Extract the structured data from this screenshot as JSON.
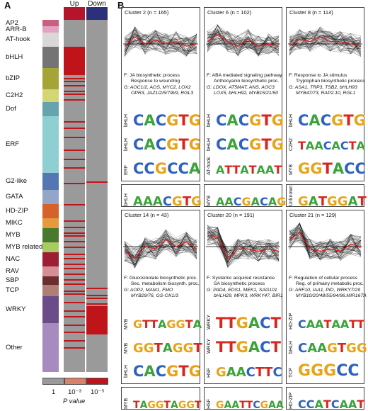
{
  "panel_a": {
    "letter": "A",
    "col_up": "Up",
    "col_down": "Down",
    "families": [
      "AP2",
      "ARR-B",
      "AT-hook",
      "bHLH",
      "bZIP",
      "C2H2",
      "Dof",
      "ERF",
      "G2-like",
      "GATA",
      "HD-ZIP",
      "MIKC",
      "MYB",
      "MYB_related",
      "NAC",
      "RAV",
      "SBP",
      "TCP",
      "WRKY",
      "Other"
    ],
    "legend": {
      "v1": "1",
      "v2": "10⁻³",
      "v3": "10⁻⁵",
      "label": "P value"
    },
    "colors": {
      "up_header": "#b5152b",
      "down_header": "#2c2f7a",
      "sig": "#c0141b",
      "bg": "#9a9a9a",
      "mid": "#d9826a"
    }
  },
  "panel_b": {
    "letter": "B",
    "clusters": [
      {
        "title": "Cluster 2 (n = 165)",
        "f1": "F: JA biosynthetic process",
        "f2": "Response to wounding",
        "g1": "G: AOC1/2, AOS, MYC2, LOX2",
        "g2": "OPR3, JAZ1/2/5/7/8/9, RGL3",
        "motifs": [
          {
            "tf": "bHLH",
            "seq": "CACGTG"
          },
          {
            "tf": "bHLH",
            "seq": "CACGTG"
          },
          {
            "tf": "ERF",
            "seq": "CCGCCA"
          }
        ],
        "extra": {
          "tf": "bHLH",
          "seq": "AAACGTG"
        }
      },
      {
        "title": "Cluster 6 (n = 102)",
        "f1": "F: ABA mediated signaling pathway",
        "f2": "Anthocyanin biosynthetic proc.",
        "g1": "G: LDOX, AT5MAT, ANS, AOC3",
        "g2": "LOX5, bHLH92, MYB15/21/50",
        "motifs": [
          {
            "tf": "bHLH",
            "seq": "CACGTG"
          },
          {
            "tf": "bHLH",
            "seq": "CACGTG"
          },
          {
            "tf": "AT-hook",
            "seq": "ATTATAAT"
          }
        ],
        "extra": {
          "tf": "MYB",
          "seq": "AACGACAG"
        }
      },
      {
        "title": "Cluster 8 (n = 114)",
        "f1": "F: Response to JA stimulus",
        "f2": "Tryptophan biosynthetic process",
        "g1": "G: ASA1, TRP3, TSB2, bHLH93",
        "g2": "MYB47/73, RAP2.10, RGL1",
        "motifs": [
          {
            "tf": "bHLH",
            "seq": "CACGTG"
          },
          {
            "tf": "C2H2",
            "seq": "TAACACTA"
          },
          {
            "tf": "MYB",
            "seq": "GGTACC"
          }
        ],
        "extra": {
          "tf": "Unknown",
          "seq": "GATGGAT"
        }
      },
      {
        "title": "Cluster 14 (n = 43)",
        "f1": "F: Glucosinolate biosynthetic proc.",
        "f2": "Sec. metabolism biosynth. proc.",
        "g1": "G: AOP2, MAM1, FMO",
        "g2": "MYB29/76, GS-OX1/3",
        "motifs": [
          {
            "tf": "MYB",
            "seq": "GTTAGGTA"
          },
          {
            "tf": "MYB",
            "seq": "GGTAGGT"
          },
          {
            "tf": "bHLH",
            "seq": "CACGTG"
          }
        ],
        "extra": {
          "tf": "MYB",
          "seq": "TAGGTAGGT"
        }
      },
      {
        "title": "Cluster 20 (n = 191)",
        "f1": "F: Systemic acquired resistance",
        "f2": "SA biosynthetic process",
        "g1": "G: PAD4, EDS1, MEK1, SAG101",
        "g2": "bHLH29, MPK3, WRKY47, BIR1",
        "motifs": [
          {
            "tf": "WRKY",
            "seq": "TTGACT"
          },
          {
            "tf": "WRKY",
            "seq": "TTGACT"
          },
          {
            "tf": "HSF",
            "seq": "GAACTTC"
          }
        ],
        "extra": {
          "tf": "HSF",
          "seq": "GAATTCGAA"
        }
      },
      {
        "title": "Cluster 21 (n = 129)",
        "f1": "F: Regulation of cellular process",
        "f2": "Reg. of primairy metabolic proc.",
        "g1": "G: ARF10, IAA1, PID, WRKY7/29",
        "g2": "MYB10/20/48/55/94/96,MIR167A",
        "motifs": [
          {
            "tf": "HD-ZIP",
            "seq": "CAATAATT"
          },
          {
            "tf": "bHLH",
            "seq": "CAAGTGG"
          },
          {
            "tf": "TCP",
            "seq": "GGGCC"
          }
        ],
        "extra": {
          "tf": "HD-ZIP",
          "seq": "CCATCAAT"
        }
      }
    ]
  }
}
